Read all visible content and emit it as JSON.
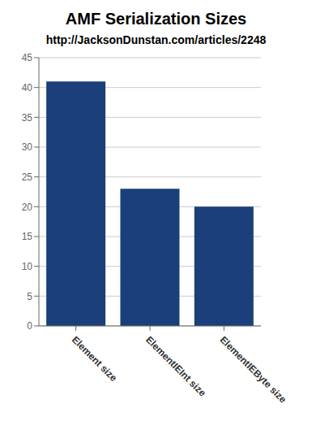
{
  "chart_data": {
    "type": "bar",
    "title": "AMF Serialization Sizes",
    "subtitle": "http://JacksonDunstan.com/articles/2248",
    "categories": [
      "Element size",
      "ElementIEInt size",
      "ElementIEByte size"
    ],
    "values": [
      41,
      23,
      20
    ],
    "color": "#1A3F7A",
    "ylim": [
      0,
      45
    ],
    "yticks": [
      0,
      5,
      10,
      15,
      20,
      25,
      30,
      35,
      40,
      45
    ],
    "grid": true
  }
}
